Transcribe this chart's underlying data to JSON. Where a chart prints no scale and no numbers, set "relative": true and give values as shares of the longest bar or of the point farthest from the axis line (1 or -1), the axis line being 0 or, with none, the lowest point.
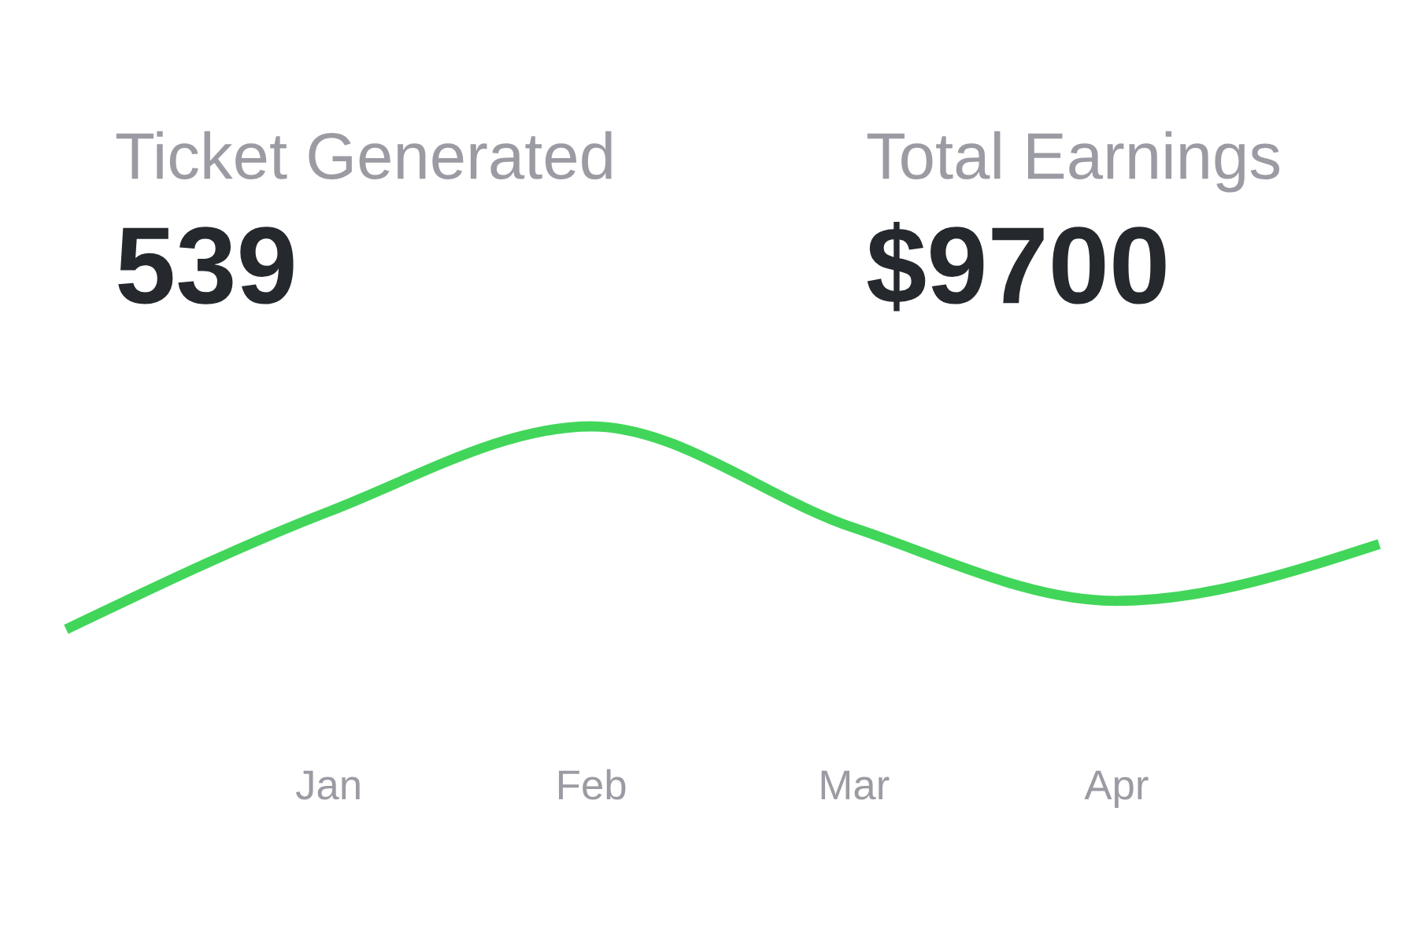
{
  "chart_data": [
    {
      "type": "other",
      "title": "Ticket Generated",
      "annotations": [
        "539"
      ]
    },
    {
      "type": "other",
      "title": "Total Earnings",
      "annotations": [
        "$9700"
      ]
    },
    {
      "type": "line",
      "categories": [
        null,
        "Jan",
        "Feb",
        "Mar",
        "Apr",
        null
      ],
      "relative": true,
      "color": "#41d65a",
      "values": [
        0,
        0.58,
        1,
        0.5,
        0.14,
        0.42
      ],
      "grid": false,
      "marker": "none",
      "line_style": "solid"
    }
  ]
}
